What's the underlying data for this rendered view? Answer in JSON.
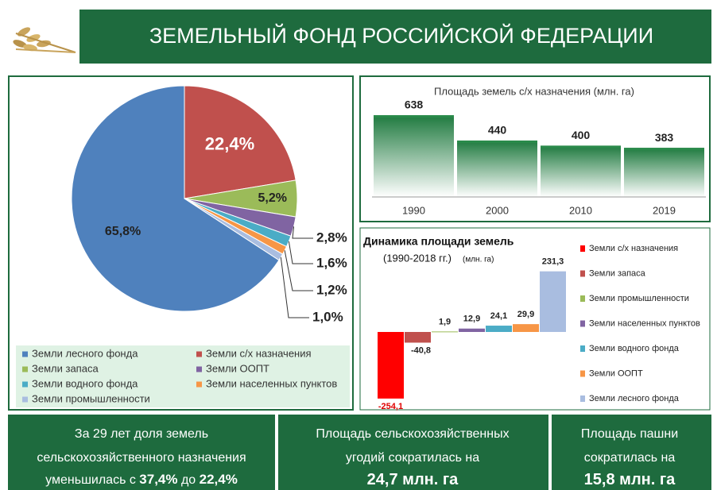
{
  "header": {
    "title": "ЗЕМЕЛЬНЫЙ ФОНД РОССИЙСКОЙ ФЕДЕРАЦИИ"
  },
  "chart_data": [
    {
      "type": "pie",
      "categories": [
        "Земли лесного фонда",
        "Земли с/х назначения",
        "Земли запаса",
        "Земли ООПТ",
        "Земли водного фонда",
        "Земли населенных пунктов",
        "Земли промышленности"
      ],
      "values": [
        65.8,
        22.4,
        5.2,
        2.8,
        1.6,
        1.2,
        1.0
      ],
      "value_labels": [
        "65,8%",
        "22,4%",
        "5,2%",
        "2,8%",
        "1,6%",
        "1,2%",
        "1,0%"
      ],
      "colors": [
        "#4f81bd",
        "#c0504d",
        "#9bbb59",
        "#8064a2",
        "#4bacc6",
        "#f79646",
        "#a9bde0"
      ]
    },
    {
      "type": "bar",
      "title": "Площадь земель с/х назначения (млн. га)",
      "categories": [
        "1990",
        "2000",
        "2010",
        "2019"
      ],
      "values": [
        638,
        440,
        400,
        383
      ],
      "color": "#2a8a4a"
    },
    {
      "type": "waterfall",
      "title": "Динамика площади земель",
      "subtitle": "(1990-2018 гг.)",
      "units": "(млн. га)",
      "categories": [
        "Земли с/х назначения",
        "Земли запаса",
        "Земли промышленности",
        "Земли населенных пунктов",
        "Земли водного фонда",
        "Земли ООПТ",
        "Земли лесного фонда"
      ],
      "values": [
        -254.1,
        -40.8,
        1.9,
        12.9,
        24.1,
        29.9,
        231.3
      ],
      "value_labels": [
        "-254,1",
        "-40,8",
        "1,9",
        "12,9",
        "24,1",
        "29,9",
        "231,3"
      ],
      "colors": [
        "#ff0000",
        "#c0504d",
        "#9bbb59",
        "#8064a2",
        "#4bacc6",
        "#f79646",
        "#a9bde0"
      ]
    }
  ],
  "summary": [
    {
      "lines": [
        [
          {
            "text": "За 29 лет доля земель"
          }
        ],
        [
          {
            "text": "сельскохозяйственного назначения"
          }
        ],
        [
          {
            "text": "уменьшилась с "
          },
          {
            "text": "37,4%",
            "bold": true
          },
          {
            "text": " до "
          },
          {
            "text": "22,4%",
            "bold": true
          }
        ]
      ]
    },
    {
      "lines": [
        [
          {
            "text": "Площадь сельскохозяйственных"
          }
        ],
        [
          {
            "text": "угодий сократилась на"
          }
        ],
        [
          {
            "text": "24,7 млн. га",
            "bold": true
          }
        ]
      ]
    },
    {
      "lines": [
        [
          {
            "text": "Площадь пашни"
          }
        ],
        [
          {
            "text": "сократилась на"
          }
        ],
        [
          {
            "text": "15,8 млн. га",
            "bold": true
          }
        ]
      ]
    }
  ]
}
